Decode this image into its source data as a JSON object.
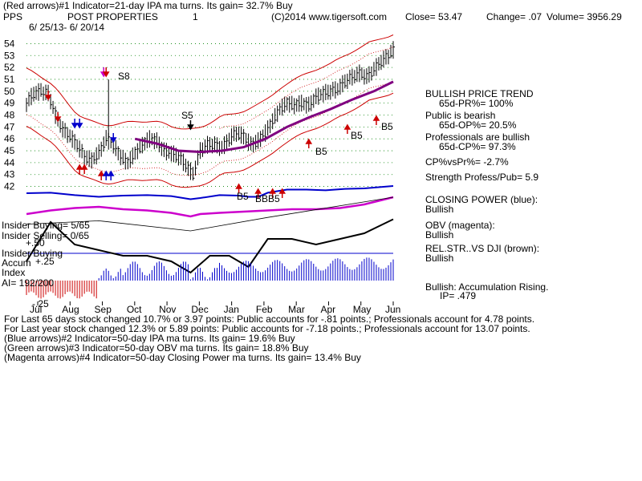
{
  "header": {
    "line1": "(Red arrows)#1 Indicator=21-day IPA ma turns. Its gain= 32.7% Buy",
    "symbol": "PPS",
    "name": "POST PROPERTIES",
    "panel_num": "1",
    "copyright": "(C)2014 www.tigersoft.com",
    "close": "Close=  53.47",
    "change": "Change= .07",
    "volume": "Volume= 3956.29",
    "dates": "6/ 25/13- 6/ 20/14"
  },
  "right_panel": {
    "trend": "BULLISH PRICE TREND",
    "pr": "65d-PR%= 100%",
    "public": "Public is bearish",
    "op": "65d-OP%= 20.5%",
    "prof": "Professionals are bullish",
    "cp": "65d-CP%= 97.3%",
    "cpvspr": "CP%vsPr%= -2.7%",
    "strength": "Strength Profess/Pub= 5.9",
    "closing_power": "CLOSING POWER (blue):",
    "closing_power_val": "Bullish",
    "obv": "OBV (magenta):",
    "obv_val": "Bullish",
    "relstr": "REL.STR..VS DJI (brown):",
    "relstr_val": "Bullish",
    "accum": "Bullish: Accumulation Rising.",
    "ip": "IP=  .479"
  },
  "left_labels": {
    "insider_buying_1": "Insider Buying= 5/65",
    "insider_selling": "Insider Selling= 0/65",
    "plus50": "+.50",
    "insider_buying_2": "Insider Buying",
    "accum": "Accum",
    "plus25": "+.25",
    "index": "Index",
    "ai": "AI= 192/200",
    "minus25": "-.25"
  },
  "signals": {
    "s8": "S8",
    "s5": "S5",
    "b5a": "B5",
    "b5b": "B5",
    "b5c": "B5",
    "b5d": "B5",
    "bbb": "BBB5"
  },
  "footer": {
    "line1": "For Last 65 days stock changed  10.7% or  3.97 points:  Public accounts for -.81 points.;  Professionals account for  4.78 points.",
    "line2": "For Last year stock changed  12.3% or  5.89 points:  Public accounts for -7.18 points.;  Professionals account for  13.07 points.",
    "line3": "(Blue arrows)#2 Indicator=50-day IPA ma turns. Its gain= 19.6% Buy",
    "line4": "(Green arrows)#3 Indicator=50-day OBV ma turns. Its gain= 18.8% Buy",
    "line5": "(Magenta arrows)#4 Indicator=50-day Closing Power ma turns. Its gain= 13.4% Buy"
  },
  "colors": {
    "price": "#000000",
    "bands": "#cc0000",
    "ma": "#800080",
    "closing_power": "#0000cc",
    "obv": "#cc00cc",
    "accum_pos": "#0000cc",
    "accum_neg": "#cc0000",
    "insider_line": "#0000cc",
    "grid": "#008000"
  },
  "chart_data": {
    "type": "line",
    "title": "POST PROPERTIES",
    "y_ticks": [
      54,
      53,
      52,
      51,
      50,
      49,
      48,
      47,
      46,
      45,
      44,
      43,
      42
    ],
    "ylim": [
      41.5,
      54.5
    ],
    "x_labels": [
      "Jul",
      "Aug",
      "Sep",
      "Oct",
      "Nov",
      "Dec",
      "Jan",
      "Feb",
      "Mar",
      "Apr",
      "May",
      "Jun"
    ],
    "grid": true,
    "series": [
      {
        "name": "Price",
        "points": [
          [
            0,
            49.0
          ],
          [
            3,
            49.8
          ],
          [
            6,
            50.0
          ],
          [
            9,
            49.8
          ],
          [
            12,
            48.0
          ],
          [
            15,
            46.8
          ],
          [
            18,
            46.2
          ],
          [
            21,
            45.5
          ],
          [
            24,
            44.5
          ],
          [
            27,
            44.2
          ],
          [
            30,
            44.8
          ],
          [
            33,
            46.0
          ],
          [
            36,
            45.5
          ],
          [
            39,
            44.5
          ],
          [
            42,
            44.0
          ],
          [
            45,
            44.8
          ],
          [
            48,
            45.5
          ],
          [
            51,
            46.0
          ],
          [
            54,
            45.8
          ],
          [
            57,
            45.0
          ],
          [
            60,
            44.8
          ],
          [
            63,
            44.5
          ],
          [
            66,
            43.8
          ],
          [
            69,
            43.0
          ],
          [
            72,
            45.0
          ],
          [
            75,
            45.5
          ],
          [
            78,
            45.5
          ],
          [
            81,
            45.2
          ],
          [
            84,
            46.0
          ],
          [
            87,
            46.5
          ],
          [
            90,
            46.2
          ],
          [
            93,
            45.5
          ],
          [
            96,
            45.8
          ],
          [
            99,
            46.5
          ],
          [
            102,
            47.5
          ],
          [
            105,
            48.5
          ],
          [
            108,
            49.0
          ],
          [
            111,
            48.8
          ],
          [
            114,
            49.0
          ],
          [
            117,
            48.8
          ],
          [
            120,
            49.5
          ],
          [
            123,
            49.8
          ],
          [
            126,
            50.0
          ],
          [
            129,
            50.2
          ],
          [
            132,
            50.8
          ],
          [
            135,
            51.2
          ],
          [
            138,
            51.5
          ],
          [
            141,
            51.2
          ],
          [
            144,
            51.8
          ],
          [
            147,
            52.5
          ],
          [
            150,
            53.0
          ],
          [
            152,
            53.47
          ]
        ]
      },
      {
        "name": "MA",
        "points": [
          [
            45,
            46.0
          ],
          [
            54,
            45.6
          ],
          [
            63,
            45.0
          ],
          [
            72,
            44.9
          ],
          [
            81,
            45.0
          ],
          [
            90,
            45.3
          ],
          [
            99,
            46.0
          ],
          [
            108,
            47.0
          ],
          [
            117,
            47.8
          ],
          [
            126,
            48.5
          ],
          [
            135,
            49.3
          ],
          [
            144,
            50.0
          ],
          [
            152,
            50.8
          ]
        ]
      },
      {
        "name": "Closing Power",
        "points": [
          [
            0,
            0.7
          ],
          [
            10,
            0.72
          ],
          [
            20,
            0.62
          ],
          [
            30,
            0.55
          ],
          [
            40,
            0.6
          ],
          [
            50,
            0.62
          ],
          [
            60,
            0.58
          ],
          [
            68,
            0.45
          ],
          [
            72,
            0.5
          ],
          [
            80,
            0.62
          ],
          [
            88,
            0.6
          ],
          [
            92,
            0.55
          ],
          [
            96,
            0.55
          ],
          [
            100,
            0.72
          ],
          [
            108,
            0.85
          ],
          [
            116,
            0.85
          ],
          [
            124,
            0.82
          ],
          [
            132,
            0.88
          ],
          [
            140,
            0.9
          ],
          [
            146,
            0.95
          ],
          [
            152,
            1.0
          ]
        ]
      },
      {
        "name": "OBV",
        "points": [
          [
            0,
            0.3
          ],
          [
            10,
            0.45
          ],
          [
            20,
            0.55
          ],
          [
            30,
            0.6
          ],
          [
            40,
            0.5
          ],
          [
            50,
            0.45
          ],
          [
            60,
            0.35
          ],
          [
            68,
            0.2
          ],
          [
            72,
            0.3
          ],
          [
            80,
            0.35
          ],
          [
            90,
            0.4
          ],
          [
            100,
            0.45
          ],
          [
            110,
            0.5
          ],
          [
            120,
            0.5
          ],
          [
            130,
            0.55
          ],
          [
            140,
            0.7
          ],
          [
            146,
            0.85
          ],
          [
            152,
            1.0
          ]
        ]
      }
    ]
  }
}
